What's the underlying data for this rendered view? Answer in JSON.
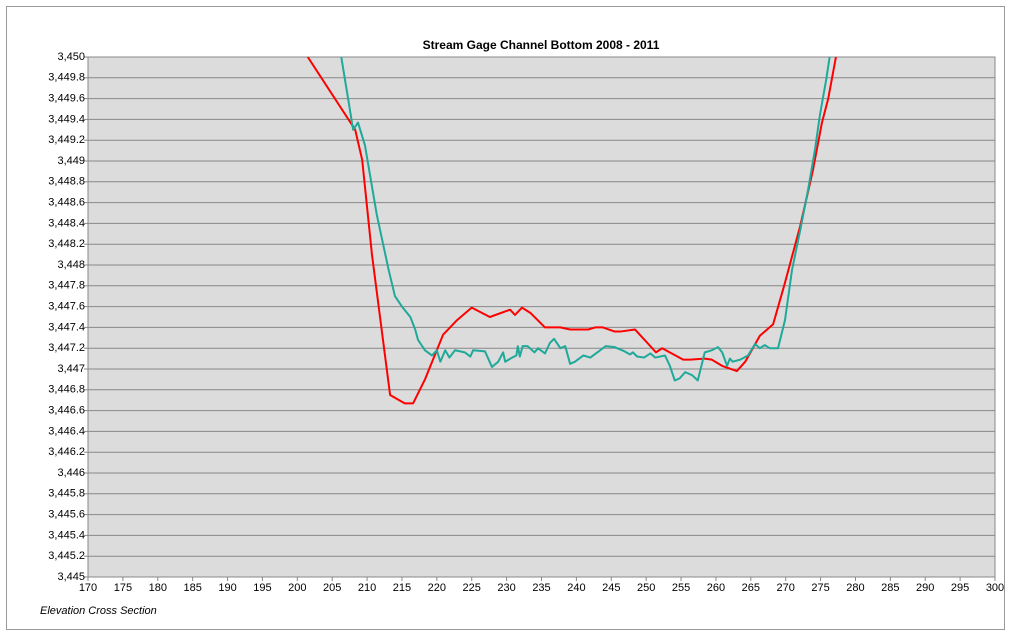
{
  "chart_data": {
    "type": "line",
    "title": "Stream Gage Channel Bottom 2008 - 2011",
    "annotation": "Elevation Cross Section",
    "xlim": [
      170,
      300
    ],
    "xticks": [
      170,
      175,
      180,
      185,
      190,
      195,
      200,
      205,
      210,
      215,
      220,
      225,
      230,
      235,
      240,
      245,
      250,
      255,
      260,
      265,
      270,
      275,
      280,
      285,
      290,
      295,
      300
    ],
    "ylim": [
      3445,
      3450
    ],
    "yticks": [
      {
        "value": 3445,
        "label": "3,445"
      },
      {
        "value": 3445.2,
        "label": "3,445.2"
      },
      {
        "value": 3445.4,
        "label": "3,445.4"
      },
      {
        "value": 3445.6,
        "label": "3,445.6"
      },
      {
        "value": 3445.8,
        "label": "3,445.8"
      },
      {
        "value": 3446,
        "label": "3,446"
      },
      {
        "value": 3446.2,
        "label": "3,446.2"
      },
      {
        "value": 3446.4,
        "label": "3,446.4"
      },
      {
        "value": 3446.6,
        "label": "3,446.6"
      },
      {
        "value": 3446.8,
        "label": "3,446.8"
      },
      {
        "value": 3447,
        "label": "3,447"
      },
      {
        "value": 3447.2,
        "label": "3,447.2"
      },
      {
        "value": 3447.4,
        "label": "3,447.4"
      },
      {
        "value": 3447.6,
        "label": "3,447.6"
      },
      {
        "value": 3447.8,
        "label": "3,447.8"
      },
      {
        "value": 3448,
        "label": "3,448"
      },
      {
        "value": 3448.2,
        "label": "3,448.2"
      },
      {
        "value": 3448.4,
        "label": "3,448.4"
      },
      {
        "value": 3448.6,
        "label": "3,448.6"
      },
      {
        "value": 3448.8,
        "label": "3,448.8"
      },
      {
        "value": 3449,
        "label": "3,449"
      },
      {
        "value": 3449.2,
        "label": "3,449.2"
      },
      {
        "value": 3449.4,
        "label": "3,449.4"
      },
      {
        "value": 3449.6,
        "label": "3,449.6"
      },
      {
        "value": 3449.8,
        "label": "3,449.8"
      },
      {
        "value": 3450,
        "label": "3,450"
      }
    ],
    "grid": true,
    "series": [
      {
        "color": "#ff0000",
        "x": [
          201.5,
          208.3,
          209.3,
          210.7,
          213.3,
          215.4,
          216.6,
          218.3,
          220.9,
          222.9,
          225.0,
          227.6,
          230.5,
          231.2,
          232.2,
          233.4,
          235.5,
          237.7,
          239.1,
          241.7,
          242.7,
          243.8,
          245.5,
          246.3,
          248.4,
          250.6,
          251.4,
          252.3,
          255.3,
          256.3,
          258.4,
          259.4,
          260.9,
          263.0,
          264.2,
          266.3,
          268.2,
          269.9,
          272.1,
          273.9,
          275.2,
          276.1,
          277.2
        ],
        "values": [
          3450,
          3449.3,
          3449.01,
          3448.1,
          3446.75,
          3446.67,
          3446.67,
          3446.9,
          3447.33,
          3447.47,
          3447.59,
          3447.5,
          3447.57,
          3447.52,
          3447.59,
          3447.54,
          3447.4,
          3447.4,
          3447.38,
          3447.38,
          3447.4,
          3447.4,
          3447.36,
          3447.36,
          3447.38,
          3447.22,
          3447.16,
          3447.2,
          3447.09,
          3447.09,
          3447.1,
          3447.09,
          3447.03,
          3446.98,
          3447.07,
          3447.32,
          3447.43,
          3447.83,
          3448.38,
          3448.91,
          3449.37,
          3449.6,
          3450
        ]
      },
      {
        "color": "#1fa99a",
        "x": [
          206.3,
          207.4,
          208.0,
          208.7,
          209.7,
          211.4,
          213.1,
          214.0,
          215.0,
          216.2,
          216.9,
          217.3,
          218.3,
          219.3,
          220.0,
          220.5,
          221.2,
          221.8,
          222.6,
          224.0,
          224.8,
          225.2,
          226.9,
          227.9,
          228.8,
          229.5,
          229.8,
          230.8,
          231.4,
          231.6,
          231.9,
          232.3,
          233.0,
          234.0,
          234.5,
          235.5,
          236.2,
          236.8,
          237.7,
          238.4,
          239.1,
          239.8,
          241.0,
          242.0,
          243.4,
          244.2,
          245.5,
          246.9,
          247.7,
          248.1,
          248.7,
          249.7,
          250.6,
          251.3,
          252.7,
          253.4,
          254.1,
          254.8,
          255.6,
          256.6,
          257.4,
          258.4,
          259.4,
          260.3,
          260.9,
          261.6,
          262.0,
          262.4,
          263.5,
          264.6,
          265.6,
          266.3,
          267.0,
          267.7,
          268.9,
          269.9,
          270.9,
          272.1,
          273.2,
          274.2,
          274.9,
          275.8,
          276.3
        ],
        "values": [
          3450,
          3449.55,
          3449.3,
          3449.37,
          3449.15,
          3448.48,
          3447.95,
          3447.7,
          3447.6,
          3447.5,
          3447.38,
          3447.28,
          3447.18,
          3447.13,
          3447.18,
          3447.07,
          3447.18,
          3447.11,
          3447.18,
          3447.16,
          3447.12,
          3447.18,
          3447.17,
          3447.02,
          3447.07,
          3447.16,
          3447.07,
          3447.11,
          3447.13,
          3447.22,
          3447.12,
          3447.22,
          3447.22,
          3447.16,
          3447.2,
          3447.15,
          3447.25,
          3447.29,
          3447.2,
          3447.22,
          3447.05,
          3447.07,
          3447.13,
          3447.11,
          3447.18,
          3447.22,
          3447.21,
          3447.17,
          3447.14,
          3447.16,
          3447.12,
          3447.11,
          3447.15,
          3447.11,
          3447.13,
          3447.03,
          3446.89,
          3446.91,
          3446.97,
          3446.94,
          3446.89,
          3447.16,
          3447.18,
          3447.21,
          3447.16,
          3447.03,
          3447.1,
          3447.07,
          3447.09,
          3447.13,
          3447.24,
          3447.2,
          3447.23,
          3447.2,
          3447.2,
          3447.47,
          3447.95,
          3448.34,
          3448.72,
          3449.11,
          3449.44,
          3449.78,
          3450
        ]
      }
    ]
  }
}
